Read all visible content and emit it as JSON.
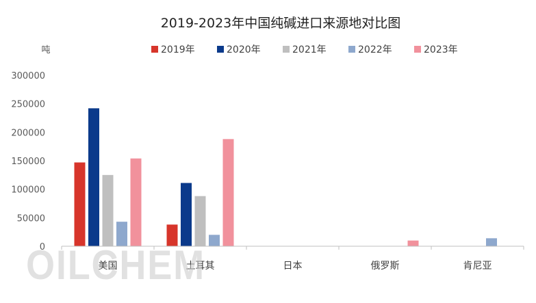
{
  "chart_data": {
    "type": "bar",
    "title": "2019-2023年中国纯碱进口来源地对比图",
    "ylabel": "吨",
    "ylim": [
      0,
      300000
    ],
    "yticks": [
      0,
      50000,
      100000,
      150000,
      200000,
      250000,
      300000
    ],
    "grid": false,
    "legend_position": "top",
    "categories": [
      "美国",
      "土耳其",
      "日本",
      "俄罗斯",
      "肯尼亚"
    ],
    "series": [
      {
        "name": "2019年",
        "color": "#d7352b",
        "values": [
          147000,
          38000,
          0,
          0,
          0
        ]
      },
      {
        "name": "2020年",
        "color": "#0b3a8b",
        "values": [
          242000,
          111000,
          0,
          0,
          0
        ]
      },
      {
        "name": "2021年",
        "color": "#bfbfbf",
        "values": [
          125000,
          88000,
          0,
          0,
          0
        ]
      },
      {
        "name": "2022年",
        "color": "#8ea8cd",
        "values": [
          43000,
          20000,
          0,
          0,
          14000
        ]
      },
      {
        "name": "2023年",
        "color": "#f1919c",
        "values": [
          154000,
          188000,
          0,
          10000,
          0
        ]
      }
    ]
  },
  "watermark": "OILCHEM"
}
